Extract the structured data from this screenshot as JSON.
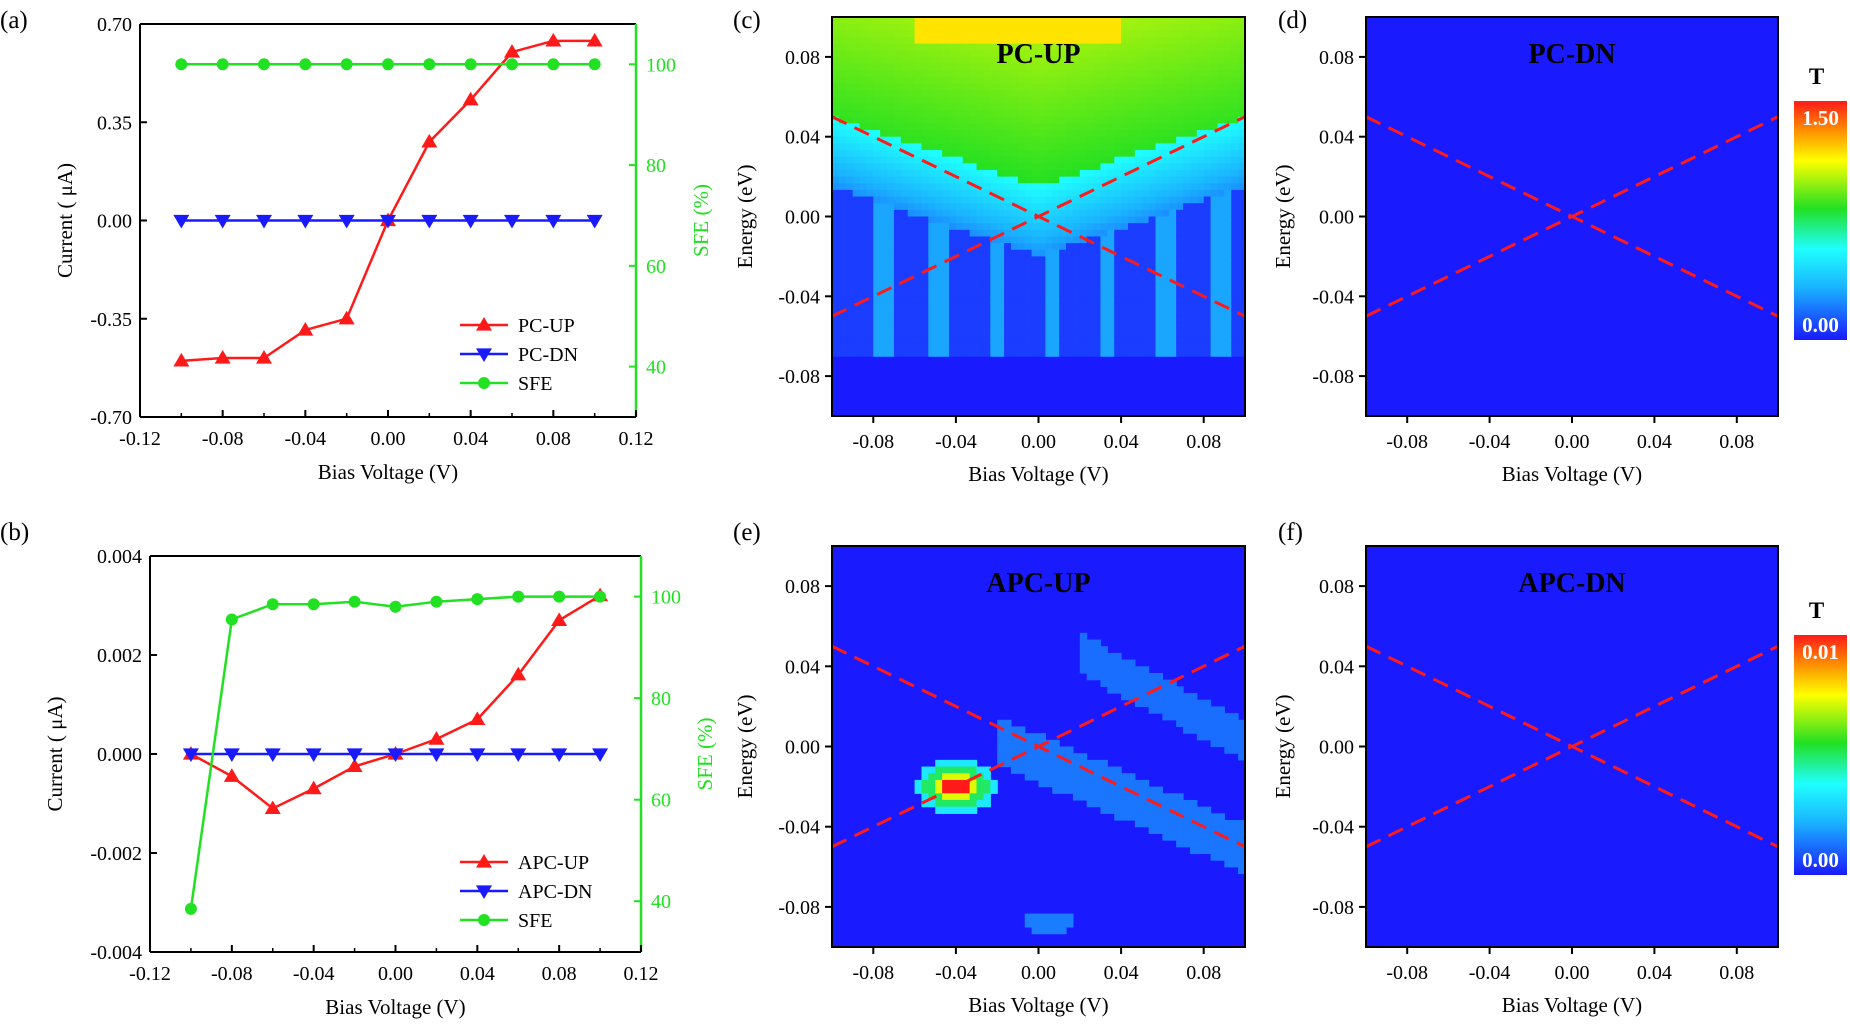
{
  "chart_data": [
    {
      "id": "a",
      "type": "line",
      "panel_label": "(a)",
      "xlabel": "Bias Voltage (V)",
      "ylabel": "Current ( μA)",
      "y2label": "SFE (%)",
      "xlim": [
        -0.12,
        0.12
      ],
      "ylim": [
        -0.7,
        0.7
      ],
      "y2lim": [
        30,
        108
      ],
      "xticks": [
        "-0.12",
        "-0.08",
        "-0.04",
        "0.00",
        "0.04",
        "0.08",
        "0.12"
      ],
      "yticks": [
        "-0.70",
        "-0.35",
        "0.00",
        "0.35",
        "0.70"
      ],
      "y2ticks": [
        "40",
        "60",
        "80",
        "100"
      ],
      "x": [
        -0.1,
        -0.08,
        -0.06,
        -0.04,
        -0.02,
        0.0,
        0.02,
        0.04,
        0.06,
        0.08,
        0.1
      ],
      "series": [
        {
          "name": "PC-UP",
          "axis": "left",
          "color": "#ff1a1a",
          "marker": "triangle-up",
          "values": [
            -0.5,
            -0.49,
            -0.49,
            -0.39,
            -0.35,
            0.0,
            0.28,
            0.43,
            0.6,
            0.64,
            0.64
          ]
        },
        {
          "name": "PC-DN",
          "axis": "left",
          "color": "#1a1aff",
          "marker": "triangle-down",
          "values": [
            0,
            0,
            0,
            0,
            0,
            0,
            0,
            0,
            0,
            0,
            0
          ]
        },
        {
          "name": "SFE",
          "axis": "right",
          "color": "#22e022",
          "marker": "circle",
          "values": [
            100,
            100,
            100,
            100,
            100,
            100,
            100,
            100,
            100,
            100,
            100
          ]
        }
      ],
      "legend": "bottom-right"
    },
    {
      "id": "b",
      "type": "line",
      "panel_label": "(b)",
      "xlabel": "Bias Voltage (V)",
      "ylabel": "Current ( μA)",
      "y2label": "SFE (%)",
      "xlim": [
        -0.12,
        0.12
      ],
      "ylim": [
        -0.004,
        0.004
      ],
      "y2lim": [
        30,
        108
      ],
      "xticks": [
        "-0.12",
        "-0.08",
        "-0.04",
        "0.00",
        "0.04",
        "0.08",
        "0.12"
      ],
      "yticks": [
        "-0.004",
        "-0.002",
        "0.000",
        "0.002",
        "0.004"
      ],
      "y2ticks": [
        "40",
        "60",
        "80",
        "100"
      ],
      "x": [
        -0.1,
        -0.08,
        -0.06,
        -0.04,
        -0.02,
        0.0,
        0.02,
        0.04,
        0.06,
        0.08,
        0.1
      ],
      "series": [
        {
          "name": "APC-UP",
          "axis": "left",
          "color": "#ff1a1a",
          "marker": "triangle-up",
          "values": [
            0.0,
            -0.00045,
            -0.0011,
            -0.0007,
            -0.00025,
            0.0,
            0.0003,
            0.0007,
            0.0016,
            0.0027,
            0.0032
          ]
        },
        {
          "name": "APC-DN",
          "axis": "left",
          "color": "#1a1aff",
          "marker": "triangle-down",
          "values": [
            0,
            0,
            0,
            0,
            0,
            0,
            0,
            0,
            0,
            0,
            0
          ]
        },
        {
          "name": "SFE",
          "axis": "right",
          "color": "#22e022",
          "marker": "circle",
          "values": [
            38.5,
            95.5,
            98.5,
            98.5,
            99.0,
            98.0,
            99.0,
            99.5,
            100,
            100,
            100
          ]
        }
      ],
      "legend": "bottom-right"
    },
    {
      "id": "c",
      "type": "heatmap",
      "panel_label": "(c)",
      "title": "PC-UP",
      "xlabel": "Bias Voltage (V)",
      "ylabel": "Energy (eV)",
      "xlim": [
        -0.1,
        0.1
      ],
      "ylim": [
        -0.1,
        0.1
      ],
      "xticks": [
        "-0.08",
        "-0.04",
        "0.00",
        "0.04",
        "0.08"
      ],
      "yticks": [
        "-0.08",
        "-0.04",
        "0.00",
        "0.04",
        "0.08"
      ],
      "pattern": "pc-up",
      "bias_window_lines": [
        [
          -0.1,
          0.05,
          0.1,
          -0.05
        ],
        [
          -0.1,
          -0.05,
          0.1,
          0.05
        ]
      ]
    },
    {
      "id": "d",
      "type": "heatmap",
      "panel_label": "(d)",
      "title": "PC-DN",
      "xlabel": "Bias Voltage (V)",
      "ylabel": "Energy (eV)",
      "xlim": [
        -0.1,
        0.1
      ],
      "ylim": [
        -0.1,
        0.1
      ],
      "xticks": [
        "-0.08",
        "-0.04",
        "0.00",
        "0.04",
        "0.08"
      ],
      "yticks": [
        "-0.08",
        "-0.04",
        "0.00",
        "0.04",
        "0.08"
      ],
      "pattern": "zero",
      "bias_window_lines": [
        [
          -0.1,
          0.05,
          0.1,
          -0.05
        ],
        [
          -0.1,
          -0.05,
          0.1,
          0.05
        ]
      ],
      "colorbar": {
        "label": "T",
        "max": "1.50",
        "min": "0.00"
      }
    },
    {
      "id": "e",
      "type": "heatmap",
      "panel_label": "(e)",
      "title": "APC-UP",
      "xlabel": "Bias Voltage (V)",
      "ylabel": "Energy (eV)",
      "xlim": [
        -0.1,
        0.1
      ],
      "ylim": [
        -0.1,
        0.1
      ],
      "xticks": [
        "-0.08",
        "-0.04",
        "0.00",
        "0.04",
        "0.08"
      ],
      "yticks": [
        "-0.08",
        "-0.04",
        "0.00",
        "0.04",
        "0.08"
      ],
      "pattern": "apc-up",
      "bias_window_lines": [
        [
          -0.1,
          0.05,
          0.1,
          -0.05
        ],
        [
          -0.1,
          -0.05,
          0.1,
          0.05
        ]
      ]
    },
    {
      "id": "f",
      "type": "heatmap",
      "panel_label": "(f)",
      "title": "APC-DN",
      "xlabel": "Bias Voltage (V)",
      "ylabel": "Energy (eV)",
      "xlim": [
        -0.1,
        0.1
      ],
      "ylim": [
        -0.1,
        0.1
      ],
      "xticks": [
        "-0.08",
        "-0.04",
        "0.00",
        "0.04",
        "0.08"
      ],
      "yticks": [
        "-0.08",
        "-0.04",
        "0.00",
        "0.04",
        "0.08"
      ],
      "pattern": "zero",
      "bias_window_lines": [
        [
          -0.1,
          0.05,
          0.1,
          -0.05
        ],
        [
          -0.1,
          -0.05,
          0.1,
          0.05
        ]
      ],
      "colorbar": {
        "label": "T",
        "max": "0.01",
        "min": "0.00"
      }
    }
  ]
}
